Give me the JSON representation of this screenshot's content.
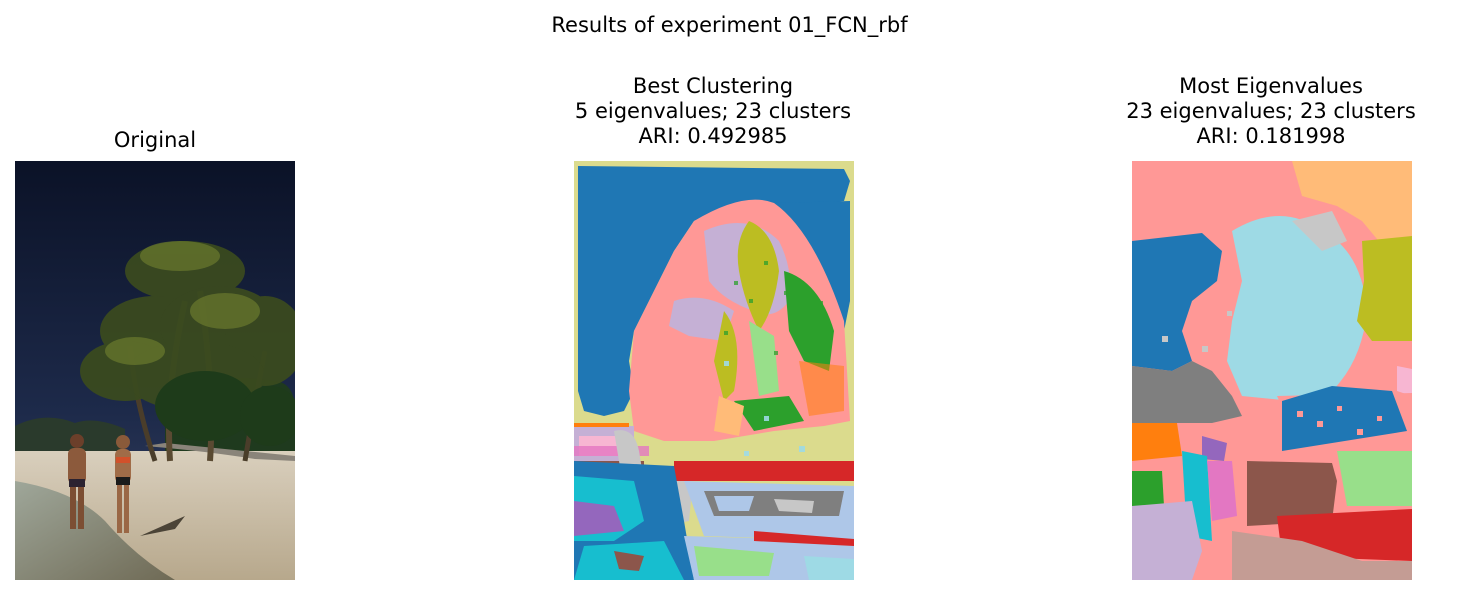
{
  "figure": {
    "suptitle": "Results of experiment 01_FCN_rbf"
  },
  "panels": [
    {
      "id": "original",
      "title_lines": [
        "Original"
      ]
    },
    {
      "id": "best",
      "title_lines": [
        "Best Clustering",
        "5 eigenvalues; 23 clusters",
        "ARI: 0.492985"
      ]
    },
    {
      "id": "most",
      "title_lines": [
        "Most Eigenvalues",
        "23 eigenvalues; 23 clusters",
        "ARI: 0.181998"
      ]
    }
  ],
  "colors": {
    "tab_blue": "#1f77b4",
    "tab_lightblue": "#aec7e8",
    "tab_orange": "#ff7f0e",
    "tab_lightorange": "#ffbb78",
    "tab_green": "#2ca02c",
    "tab_lightgreen": "#98df8a",
    "tab_red": "#d62728",
    "tab_pink": "#ff9896",
    "tab_purple": "#9467bd",
    "tab_lavender": "#c5b0d5",
    "tab_brown": "#8c564b",
    "tab_tan": "#c49c94",
    "tab_magenta": "#e377c2",
    "tab_lightpink": "#f7b6d2",
    "tab_gray": "#7f7f7f",
    "tab_lightgray": "#c7c7c7",
    "tab_olive": "#bcbd22",
    "tab_khaki": "#dbdb8d",
    "tab_cyan": "#17becf",
    "tab_lightcyan": "#9edae5"
  }
}
